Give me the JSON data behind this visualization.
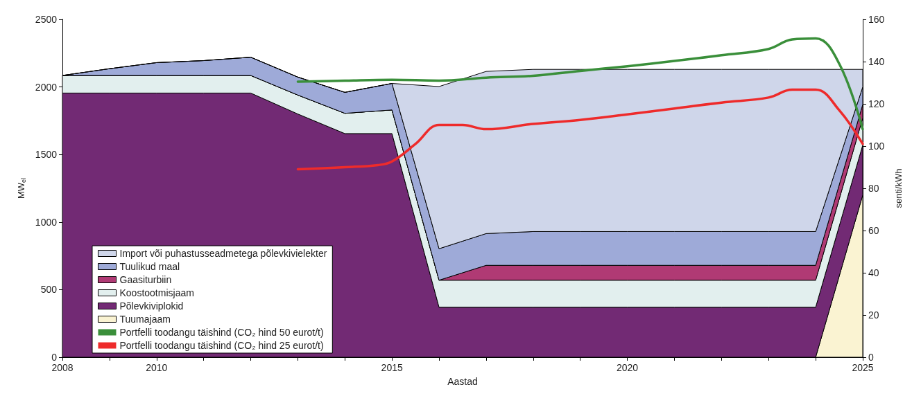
{
  "chart_data": {
    "type": "area",
    "stacked": true,
    "xlabel": "Aastad",
    "ylabel": "MW$_{el}$",
    "y2label": "senti/kWh",
    "x": [
      2008,
      2009,
      2010,
      2011,
      2012,
      2013,
      2014,
      2015,
      2016,
      2017,
      2018,
      2019,
      2020,
      2021,
      2022,
      2023,
      2024,
      2025
    ],
    "xlim": [
      2008,
      2025
    ],
    "xticks": [
      2008,
      {
        "value": 2009,
        "label": null
      },
      2010,
      {
        "value": 2011,
        "label": null
      },
      {
        "value": 2012,
        "label": null
      },
      {
        "value": 2013,
        "label": null
      },
      {
        "value": 2014,
        "label": null
      },
      2015,
      {
        "value": 2016,
        "label": null
      },
      {
        "value": 2017,
        "label": null
      },
      {
        "value": 2018,
        "label": null
      },
      {
        "value": 2019,
        "label": null
      },
      2020,
      {
        "value": 2021,
        "label": null
      },
      {
        "value": 2022,
        "label": null
      },
      {
        "value": 2023,
        "label": null
      },
      {
        "value": 2024,
        "label": null
      },
      2025
    ],
    "ylim": [
      0,
      2500
    ],
    "yticks": [
      0,
      500,
      1000,
      1500,
      2000,
      2500
    ],
    "y2lim": [
      0,
      160
    ],
    "y2ticks": [
      0,
      20,
      40,
      60,
      80,
      100,
      120,
      140,
      160
    ],
    "grid": false,
    "legend": "bottom left",
    "series": [
      {
        "name": "Tuumajaam",
        "color": "#faf3d2",
        "values": [
          0,
          0,
          0,
          0,
          0,
          0,
          0,
          0,
          0,
          0,
          0,
          0,
          0,
          0,
          0,
          0,
          0,
          1200
        ]
      },
      {
        "name": "Põlevkiviplokid",
        "color": "#722a74",
        "values": [
          1955,
          1955,
          1955,
          1955,
          1955,
          1800,
          1655,
          1655,
          370,
          370,
          370,
          370,
          370,
          370,
          370,
          370,
          370,
          370
        ]
      },
      {
        "name": "Koostootmisjaam",
        "color": "#e2efee",
        "values": [
          130,
          130,
          130,
          130,
          130,
          140,
          150,
          175,
          200,
          200,
          200,
          200,
          200,
          200,
          200,
          200,
          200,
          200
        ]
      },
      {
        "name": "Gaasiturbiin",
        "color": "#b03a74",
        "values": [
          0,
          0,
          0,
          0,
          0,
          0,
          0,
          0,
          0,
          110,
          110,
          110,
          110,
          110,
          110,
          110,
          110,
          100
        ]
      },
      {
        "name": "Tuulikud maal",
        "color": "#9eaad8",
        "values": [
          0,
          50,
          95,
          110,
          135,
          133,
          155,
          196,
          233,
          235,
          250,
          250,
          250,
          250,
          250,
          250,
          250,
          130
        ]
      },
      {
        "name": "Import või puhastusseadmetega põlevkivielekter",
        "color": "#cfd6ea",
        "values": [
          0,
          0,
          0,
          0,
          0,
          0,
          0,
          0,
          1200,
          1200,
          1200,
          1200,
          1200,
          1200,
          1200,
          1200,
          1200,
          130
        ]
      },
      {
        "name": "Portfelli toodangu täishind (CO₂ hind 50 eurot/t)",
        "type": "line",
        "axis": "y2",
        "color": "#3a8f3a",
        "x": [
          2013,
          2014,
          2015,
          2016,
          2017,
          2018,
          2019,
          2020,
          2021,
          2022,
          2023,
          2023.5,
          2024,
          2024.5,
          2025
        ],
        "values": [
          130.5,
          131,
          131.4,
          131,
          132.4,
          133.3,
          135.6,
          137.8,
          140.3,
          143,
          146,
          150.5,
          151,
          139,
          108
        ]
      },
      {
        "name": "Portfelli toodangu täishind (CO₂ hind 25 eurot/t)",
        "type": "line",
        "axis": "y2",
        "color": "#ee2b2b",
        "x": [
          2013,
          2014,
          2014.7,
          2015,
          2015.5,
          2016,
          2016.5,
          2017,
          2018,
          2019,
          2020,
          2021,
          2022,
          2023,
          2023.5,
          2024,
          2024.5,
          2025
        ],
        "values": [
          89,
          90,
          91,
          92.7,
          101,
          110,
          110,
          108,
          110.5,
          112.4,
          115,
          117.8,
          120.6,
          123,
          126.7,
          126.7,
          117,
          101
        ]
      }
    ]
  }
}
